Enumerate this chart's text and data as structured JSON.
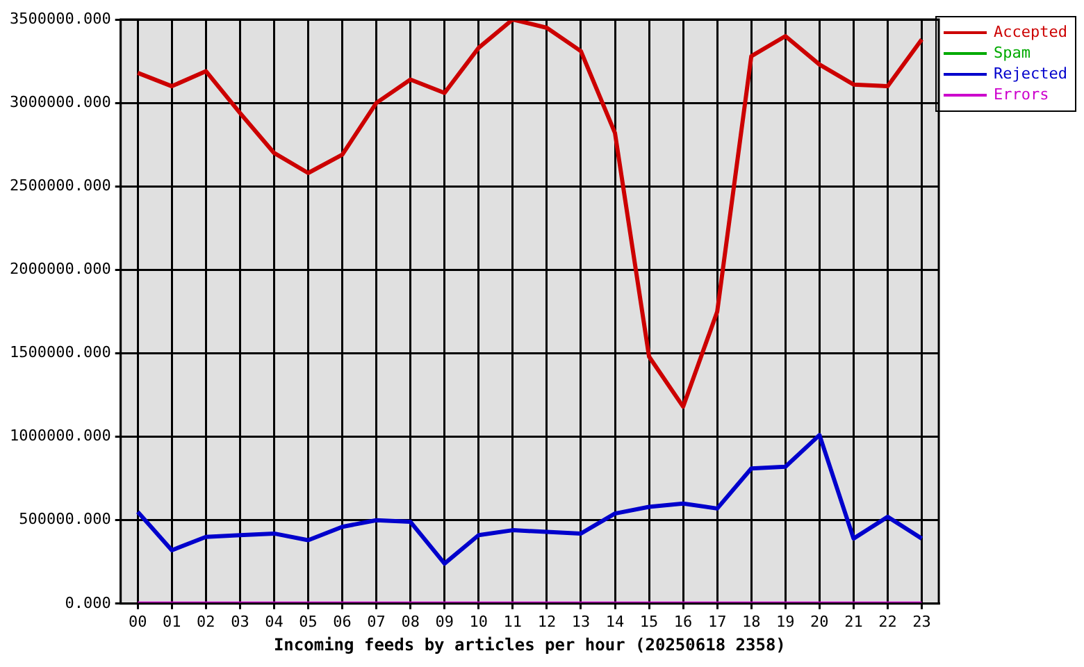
{
  "chart_data": {
    "type": "line",
    "xlabel": "Incoming feeds by articles per hour (20250618 2358)",
    "categories": [
      "00",
      "01",
      "02",
      "03",
      "04",
      "05",
      "06",
      "07",
      "08",
      "09",
      "10",
      "11",
      "12",
      "13",
      "14",
      "15",
      "16",
      "17",
      "18",
      "19",
      "20",
      "21",
      "22",
      "23"
    ],
    "series": [
      {
        "name": "Accepted",
        "color": "#cc0000",
        "values": [
          3180000,
          3100000,
          3190000,
          2940000,
          2700000,
          2580000,
          2690000,
          3000000,
          3140000,
          3060000,
          3330000,
          3500000,
          3450000,
          3310000,
          2820000,
          1480000,
          1180000,
          1750000,
          3280000,
          3400000,
          3230000,
          3110000,
          3100000,
          3380000
        ]
      },
      {
        "name": "Spam",
        "color": "#00aa00",
        "values": [
          null,
          null,
          null,
          null,
          null,
          null,
          null,
          null,
          null,
          null,
          null,
          null,
          null,
          null,
          null,
          null,
          null,
          null,
          null,
          null,
          null,
          null,
          null,
          null
        ]
      },
      {
        "name": "Rejected",
        "color": "#0000cc",
        "values": [
          550000,
          320000,
          400000,
          410000,
          420000,
          380000,
          460000,
          500000,
          490000,
          240000,
          410000,
          440000,
          430000,
          420000,
          540000,
          580000,
          600000,
          570000,
          810000,
          820000,
          1010000,
          390000,
          520000,
          390000
        ]
      },
      {
        "name": "Errors",
        "color": "#cc00cc",
        "values": [
          0,
          0,
          0,
          0,
          0,
          0,
          0,
          0,
          0,
          0,
          0,
          0,
          0,
          0,
          0,
          0,
          0,
          0,
          0,
          0,
          0,
          0,
          0,
          0
        ]
      }
    ],
    "ylim": [
      0,
      3500000
    ],
    "yticks": [
      {
        "value": 0,
        "label": "0.000"
      },
      {
        "value": 500000,
        "label": "500000.000"
      },
      {
        "value": 1000000,
        "label": "1000000.000"
      },
      {
        "value": 1500000,
        "label": "1500000.000"
      },
      {
        "value": 2000000,
        "label": "2000000.000"
      },
      {
        "value": 2500000,
        "label": "2500000.000"
      },
      {
        "value": 3000000,
        "label": "3000000.000"
      },
      {
        "value": 3500000,
        "label": "3500000.000"
      }
    ],
    "grid": true,
    "legend": "top right",
    "marker": "none",
    "line_style": "solid"
  }
}
